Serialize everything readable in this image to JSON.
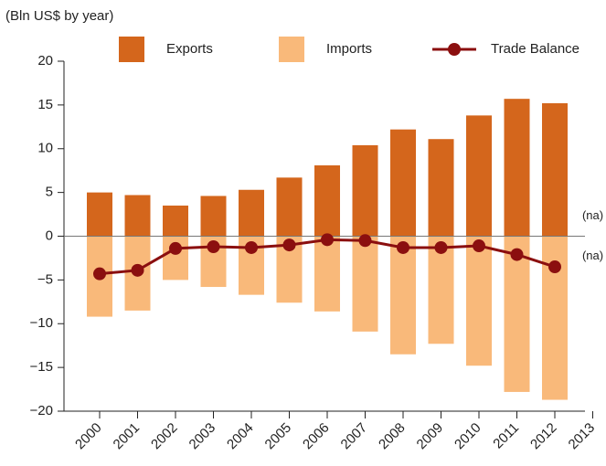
{
  "chart_data": {
    "type": "bar-line",
    "subtitle": "(Bln US$ by year)",
    "categories": [
      "2000",
      "2001",
      "2002",
      "2003",
      "2004",
      "2005",
      "2006",
      "2007",
      "2008",
      "2009",
      "2010",
      "2011",
      "2012",
      "2013"
    ],
    "series": [
      {
        "name": "Exports",
        "type": "bar",
        "color": "#d4661c",
        "values": [
          5.0,
          4.7,
          3.5,
          4.6,
          5.3,
          6.7,
          8.1,
          10.4,
          12.2,
          11.1,
          13.8,
          15.7,
          15.2,
          null
        ],
        "value_labels": [
          null,
          null,
          null,
          null,
          null,
          null,
          null,
          null,
          null,
          null,
          null,
          null,
          null,
          "(na)"
        ]
      },
      {
        "name": "Imports",
        "type": "bar",
        "color": "#f9b97a",
        "values": [
          -9.2,
          -8.5,
          -5.0,
          -5.8,
          -6.7,
          -7.6,
          -8.6,
          -10.9,
          -13.5,
          -12.3,
          -14.8,
          -17.8,
          -18.7,
          null
        ],
        "value_labels": [
          null,
          null,
          null,
          null,
          null,
          null,
          null,
          null,
          null,
          null,
          null,
          null,
          null,
          "(na)"
        ]
      },
      {
        "name": "Trade Balance",
        "type": "line",
        "color": "#8b0f0f",
        "values": [
          -4.3,
          -3.9,
          -1.4,
          -1.2,
          -1.3,
          -1.0,
          -0.4,
          -0.5,
          -1.3,
          -1.3,
          -1.1,
          -2.1,
          -3.5,
          null
        ]
      }
    ],
    "ylim": [
      -20,
      20
    ],
    "yticks": [
      {
        "value": -20,
        "label": "−20"
      },
      {
        "value": -15,
        "label": "−15"
      },
      {
        "value": -10,
        "label": "−10"
      },
      {
        "value": -5,
        "label": "−5"
      },
      0,
      5,
      10,
      15,
      20
    ],
    "legend": "top"
  }
}
